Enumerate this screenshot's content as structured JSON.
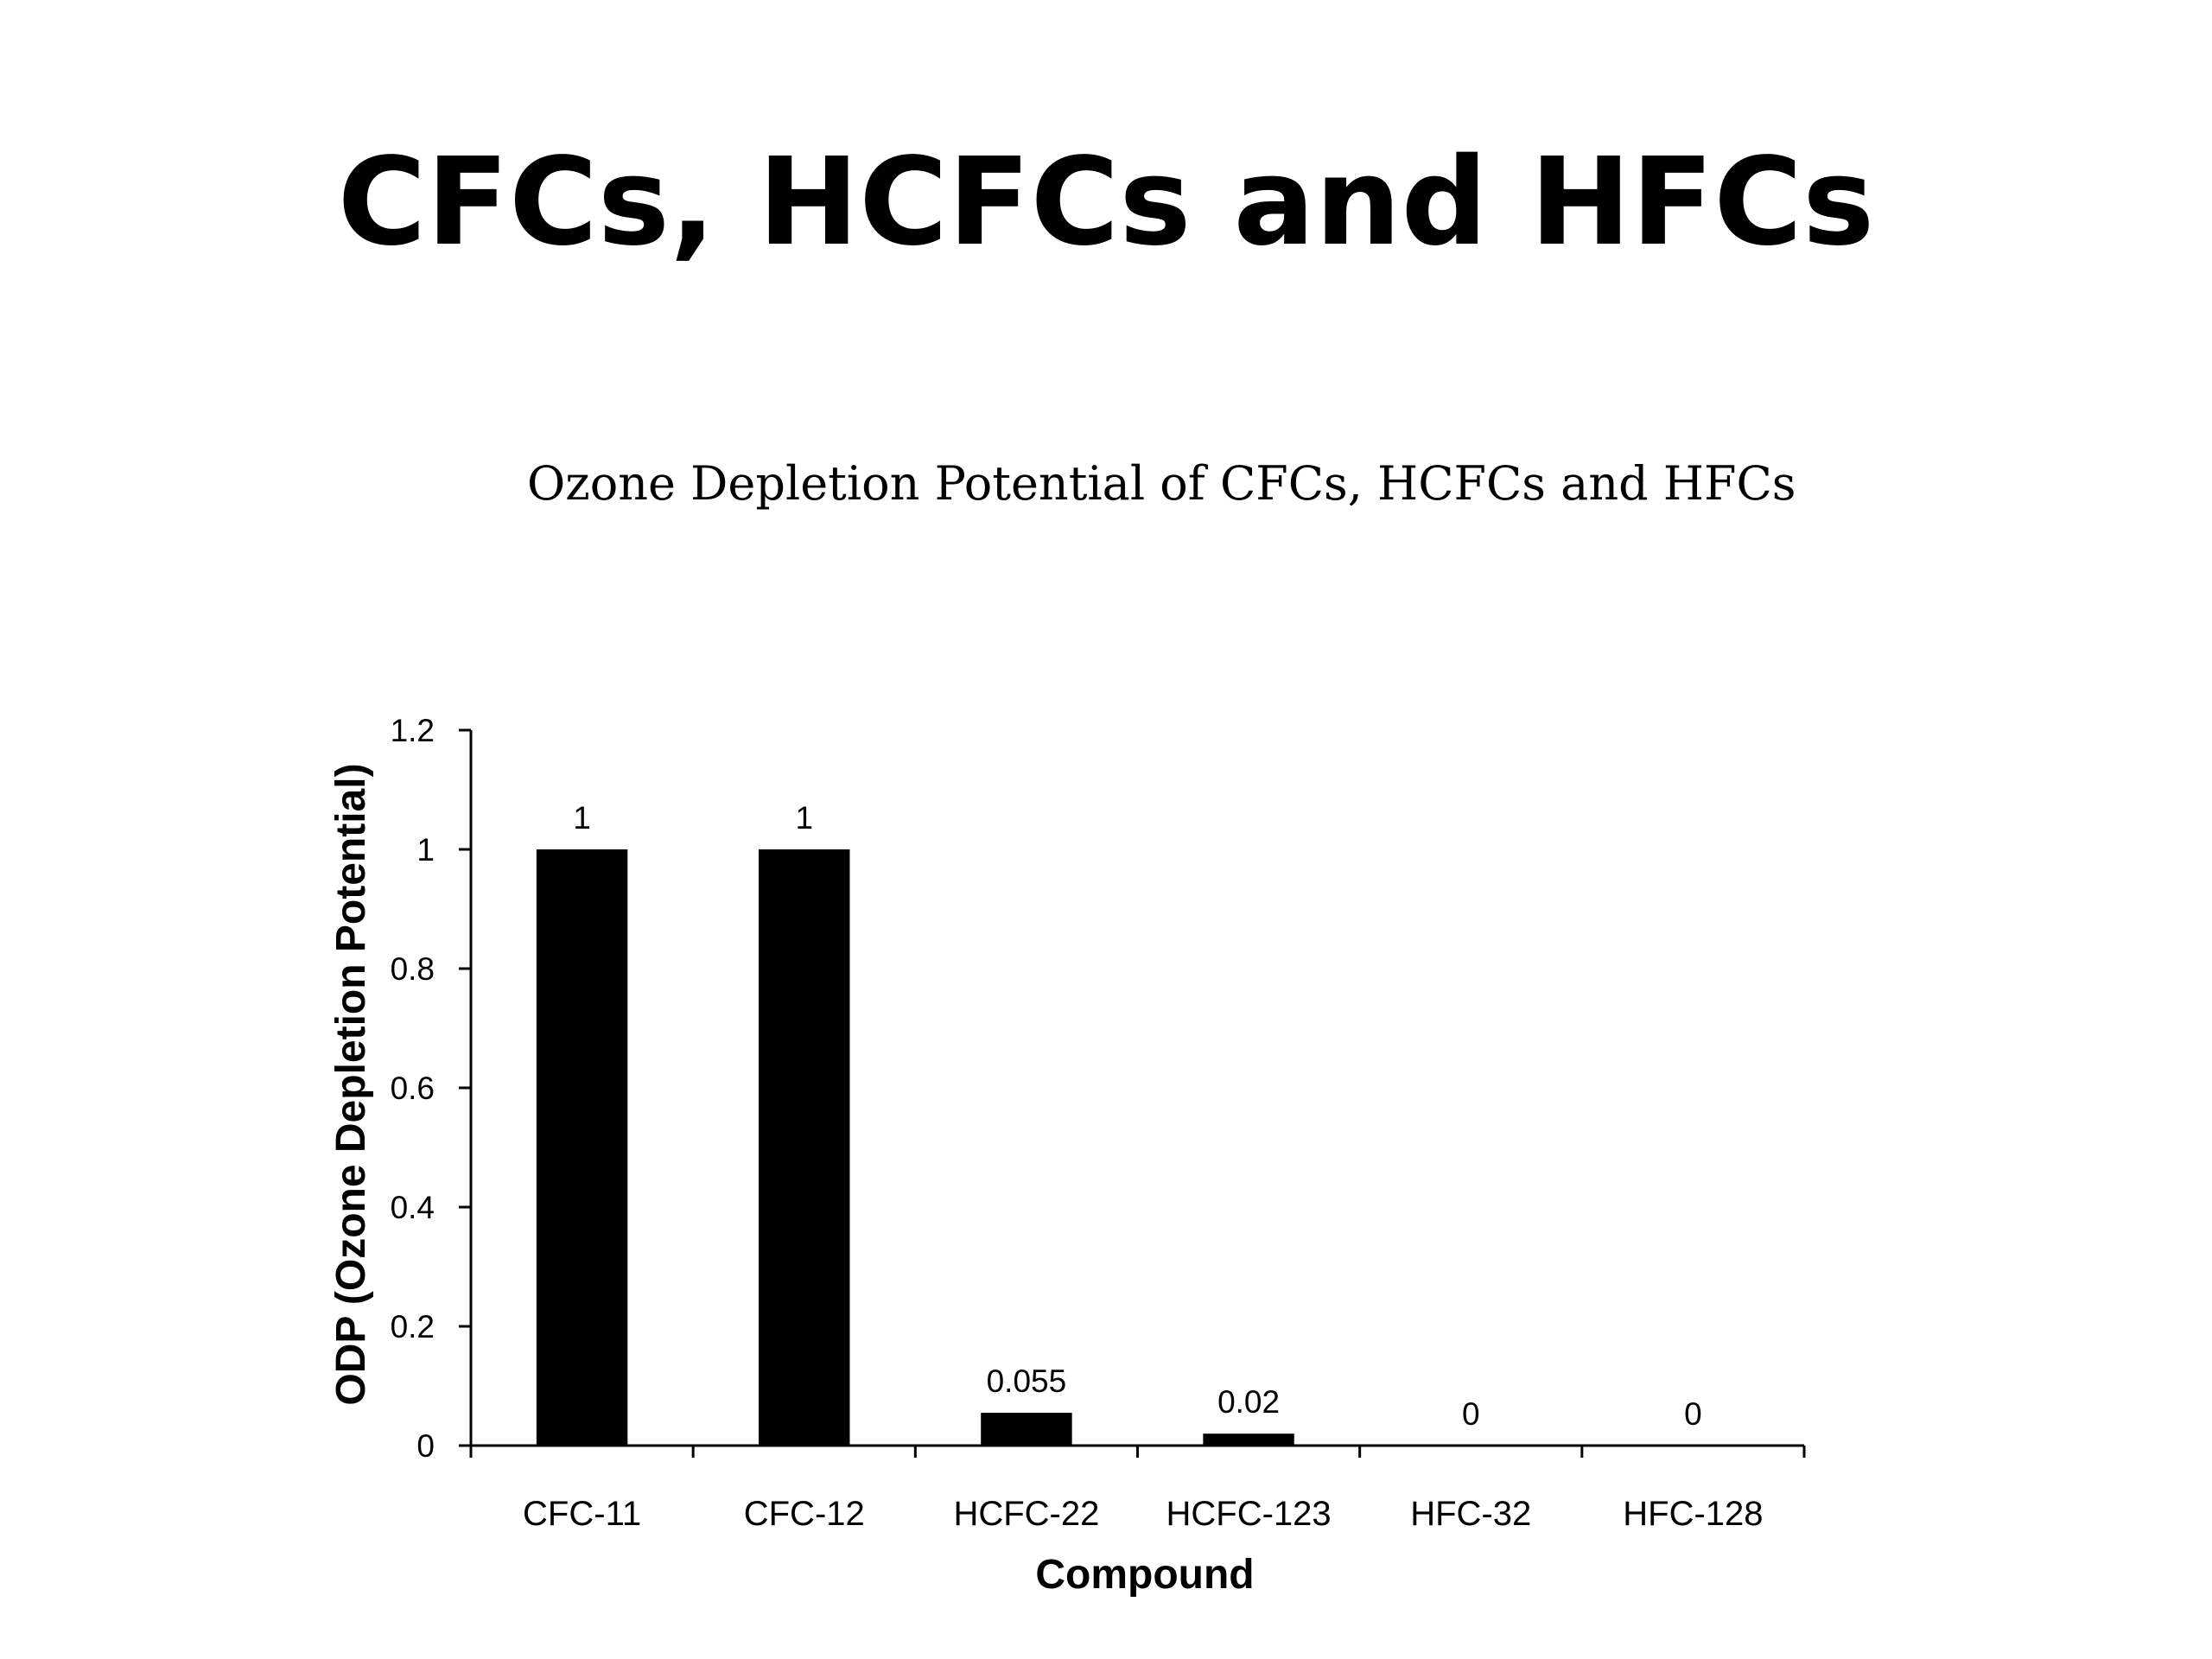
{
  "slide": {
    "title": "CFCs, HCFCs and HFCs"
  },
  "chart_data": {
    "type": "bar",
    "title": "Ozone Depletion Potential of CFCs, HCFCs and HFCs",
    "xlabel": "Compound",
    "ylabel": "ODP (Ozone Depletion Potential)",
    "categories": [
      "CFC-11",
      "CFC-12",
      "HCFC-22",
      "HCFC-123",
      "HFC-32",
      "HFC-128"
    ],
    "values": [
      1,
      1,
      0.055,
      0.02,
      0,
      0
    ],
    "data_labels": [
      "1",
      "1",
      "0.055",
      "0.02",
      "0",
      "0"
    ],
    "ylim": [
      0,
      1.2
    ],
    "yticks": [
      0,
      0.2,
      0.4,
      0.6,
      0.8,
      1,
      1.2
    ],
    "ytick_labels": [
      "0",
      "0.2",
      "0.4",
      "0.6",
      "0.8",
      "1",
      "1.2"
    ],
    "grid": false,
    "legend": "none",
    "bar_color": "#000000"
  }
}
